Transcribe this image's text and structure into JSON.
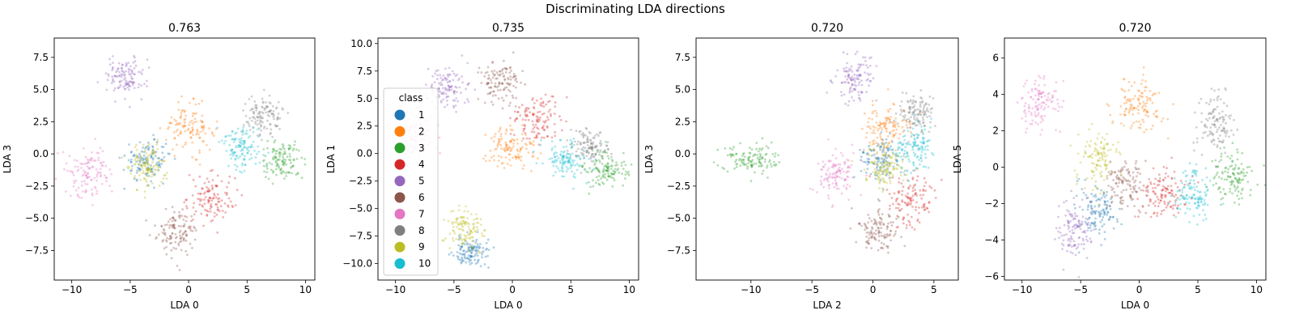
{
  "suptitle": "Discriminating LDA directions",
  "class_colors": {
    "1": "#1f77b4",
    "2": "#ff7f0e",
    "3": "#2ca02c",
    "4": "#d62728",
    "5": "#9467bd",
    "6": "#8c564b",
    "7": "#e377c2",
    "8": "#7f7f7f",
    "9": "#bcbd22",
    "10": "#17becf"
  },
  "legend": {
    "title": "class",
    "placement": "center-left of second panel",
    "entries": [
      "1",
      "2",
      "3",
      "4",
      "5",
      "6",
      "7",
      "8",
      "9",
      "10"
    ]
  },
  "chart_data": [
    {
      "type": "scatter",
      "title": "0.763",
      "xlabel": "LDA 0",
      "ylabel": "LDA 3",
      "xlim": [
        -11.5,
        10.8
      ],
      "ylim": [
        -9.8,
        9.0
      ],
      "xticks": [
        -10,
        -5,
        0,
        5,
        10
      ],
      "yticks": [
        -7.5,
        -5.0,
        -2.5,
        0.0,
        2.5,
        5.0,
        7.5
      ],
      "series": [
        {
          "class": "1",
          "center": [
            -3.5,
            -0.5
          ],
          "spread": [
            1.0,
            0.8
          ]
        },
        {
          "class": "2",
          "center": [
            0.0,
            2.0
          ],
          "spread": [
            1.1,
            0.9
          ]
        },
        {
          "class": "3",
          "center": [
            8.0,
            -0.5
          ],
          "spread": [
            0.9,
            0.7
          ]
        },
        {
          "class": "4",
          "center": [
            2.0,
            -3.5
          ],
          "spread": [
            1.0,
            1.0
          ]
        },
        {
          "class": "5",
          "center": [
            -5.5,
            6.0
          ],
          "spread": [
            0.9,
            0.8
          ]
        },
        {
          "class": "6",
          "center": [
            -1.0,
            -6.0
          ],
          "spread": [
            0.9,
            0.9
          ]
        },
        {
          "class": "7",
          "center": [
            -8.5,
            -1.5
          ],
          "spread": [
            0.9,
            1.0
          ]
        },
        {
          "class": "8",
          "center": [
            6.5,
            3.0
          ],
          "spread": [
            0.8,
            0.8
          ]
        },
        {
          "class": "9",
          "center": [
            -3.5,
            -1.0
          ],
          "spread": [
            0.8,
            0.8
          ]
        },
        {
          "class": "10",
          "center": [
            4.5,
            0.5
          ],
          "spread": [
            0.9,
            0.9
          ]
        }
      ]
    },
    {
      "type": "scatter",
      "title": "0.735",
      "xlabel": "LDA 0",
      "ylabel": "LDA 1",
      "xlim": [
        -11.5,
        10.8
      ],
      "ylim": [
        -11.5,
        10.5
      ],
      "xticks": [
        -10,
        -5,
        0,
        5,
        10
      ],
      "yticks": [
        -10.0,
        -7.5,
        -5.0,
        -2.5,
        0.0,
        2.5,
        5.0,
        7.5,
        10.0
      ],
      "series": [
        {
          "class": "1",
          "center": [
            -3.5,
            -9.0
          ],
          "spread": [
            0.8,
            0.7
          ]
        },
        {
          "class": "2",
          "center": [
            0.0,
            0.5
          ],
          "spread": [
            1.0,
            1.0
          ]
        },
        {
          "class": "3",
          "center": [
            8.0,
            -1.5
          ],
          "spread": [
            0.9,
            0.8
          ]
        },
        {
          "class": "4",
          "center": [
            2.0,
            3.0
          ],
          "spread": [
            1.1,
            1.1
          ]
        },
        {
          "class": "5",
          "center": [
            -5.5,
            6.0
          ],
          "spread": [
            0.9,
            0.9
          ]
        },
        {
          "class": "6",
          "center": [
            -1.0,
            6.5
          ],
          "spread": [
            0.9,
            0.9
          ]
        },
        {
          "class": "7",
          "center": [
            -8.5,
            1.5
          ],
          "spread": [
            0.9,
            0.9
          ]
        },
        {
          "class": "8",
          "center": [
            6.5,
            0.5
          ],
          "spread": [
            0.8,
            0.8
          ]
        },
        {
          "class": "9",
          "center": [
            -4.0,
            -7.0
          ],
          "spread": [
            0.9,
            0.9
          ]
        },
        {
          "class": "10",
          "center": [
            4.5,
            -0.5
          ],
          "spread": [
            0.9,
            0.8
          ]
        }
      ]
    },
    {
      "type": "scatter",
      "title": "0.720",
      "xlabel": "LDA 2",
      "ylabel": "LDA 3",
      "xlim": [
        -14.5,
        7.0
      ],
      "ylim": [
        -9.8,
        9.0
      ],
      "xticks": [
        -10,
        -5,
        0,
        5
      ],
      "yticks": [
        -7.5,
        -5.0,
        -2.5,
        0.0,
        2.5,
        5.0,
        7.5
      ],
      "series": [
        {
          "class": "1",
          "center": [
            0.5,
            -0.5
          ],
          "spread": [
            0.8,
            0.8
          ]
        },
        {
          "class": "2",
          "center": [
            1.0,
            2.0
          ],
          "spread": [
            1.0,
            1.0
          ]
        },
        {
          "class": "3",
          "center": [
            -10.0,
            -0.5
          ],
          "spread": [
            1.3,
            0.7
          ]
        },
        {
          "class": "4",
          "center": [
            3.0,
            -3.5
          ],
          "spread": [
            1.0,
            1.0
          ]
        },
        {
          "class": "5",
          "center": [
            -1.5,
            6.0
          ],
          "spread": [
            0.9,
            0.9
          ]
        },
        {
          "class": "6",
          "center": [
            0.5,
            -6.0
          ],
          "spread": [
            0.9,
            0.9
          ]
        },
        {
          "class": "7",
          "center": [
            -3.0,
            -1.5
          ],
          "spread": [
            0.9,
            0.9
          ]
        },
        {
          "class": "8",
          "center": [
            3.5,
            3.0
          ],
          "spread": [
            0.8,
            0.8
          ]
        },
        {
          "class": "9",
          "center": [
            1.0,
            -1.0
          ],
          "spread": [
            0.8,
            0.8
          ]
        },
        {
          "class": "10",
          "center": [
            3.5,
            0.5
          ],
          "spread": [
            0.8,
            0.9
          ]
        }
      ]
    },
    {
      "type": "scatter",
      "title": "0.720",
      "xlabel": "LDA 0",
      "ylabel": "LDA 5",
      "xlim": [
        -11.5,
        10.8
      ],
      "ylim": [
        -6.2,
        7.1
      ],
      "xticks": [
        -10,
        -5,
        0,
        5,
        10
      ],
      "yticks": [
        -6,
        -4,
        -2,
        0,
        2,
        4,
        6
      ],
      "series": [
        {
          "class": "1",
          "center": [
            -3.5,
            -2.5
          ],
          "spread": [
            0.9,
            0.7
          ]
        },
        {
          "class": "2",
          "center": [
            0.0,
            3.5
          ],
          "spread": [
            1.0,
            0.8
          ]
        },
        {
          "class": "3",
          "center": [
            8.0,
            -0.5
          ],
          "spread": [
            0.9,
            0.7
          ]
        },
        {
          "class": "4",
          "center": [
            2.0,
            -1.5
          ],
          "spread": [
            1.0,
            0.7
          ]
        },
        {
          "class": "5",
          "center": [
            -5.5,
            -3.5
          ],
          "spread": [
            0.8,
            0.8
          ]
        },
        {
          "class": "6",
          "center": [
            -1.0,
            -1.0
          ],
          "spread": [
            0.9,
            0.7
          ]
        },
        {
          "class": "7",
          "center": [
            -8.5,
            3.5
          ],
          "spread": [
            0.9,
            0.8
          ]
        },
        {
          "class": "8",
          "center": [
            6.5,
            2.5
          ],
          "spread": [
            0.8,
            0.9
          ]
        },
        {
          "class": "9",
          "center": [
            -3.5,
            0.5
          ],
          "spread": [
            0.9,
            0.8
          ]
        },
        {
          "class": "10",
          "center": [
            4.5,
            -1.5
          ],
          "spread": [
            0.8,
            0.7
          ]
        }
      ]
    }
  ]
}
